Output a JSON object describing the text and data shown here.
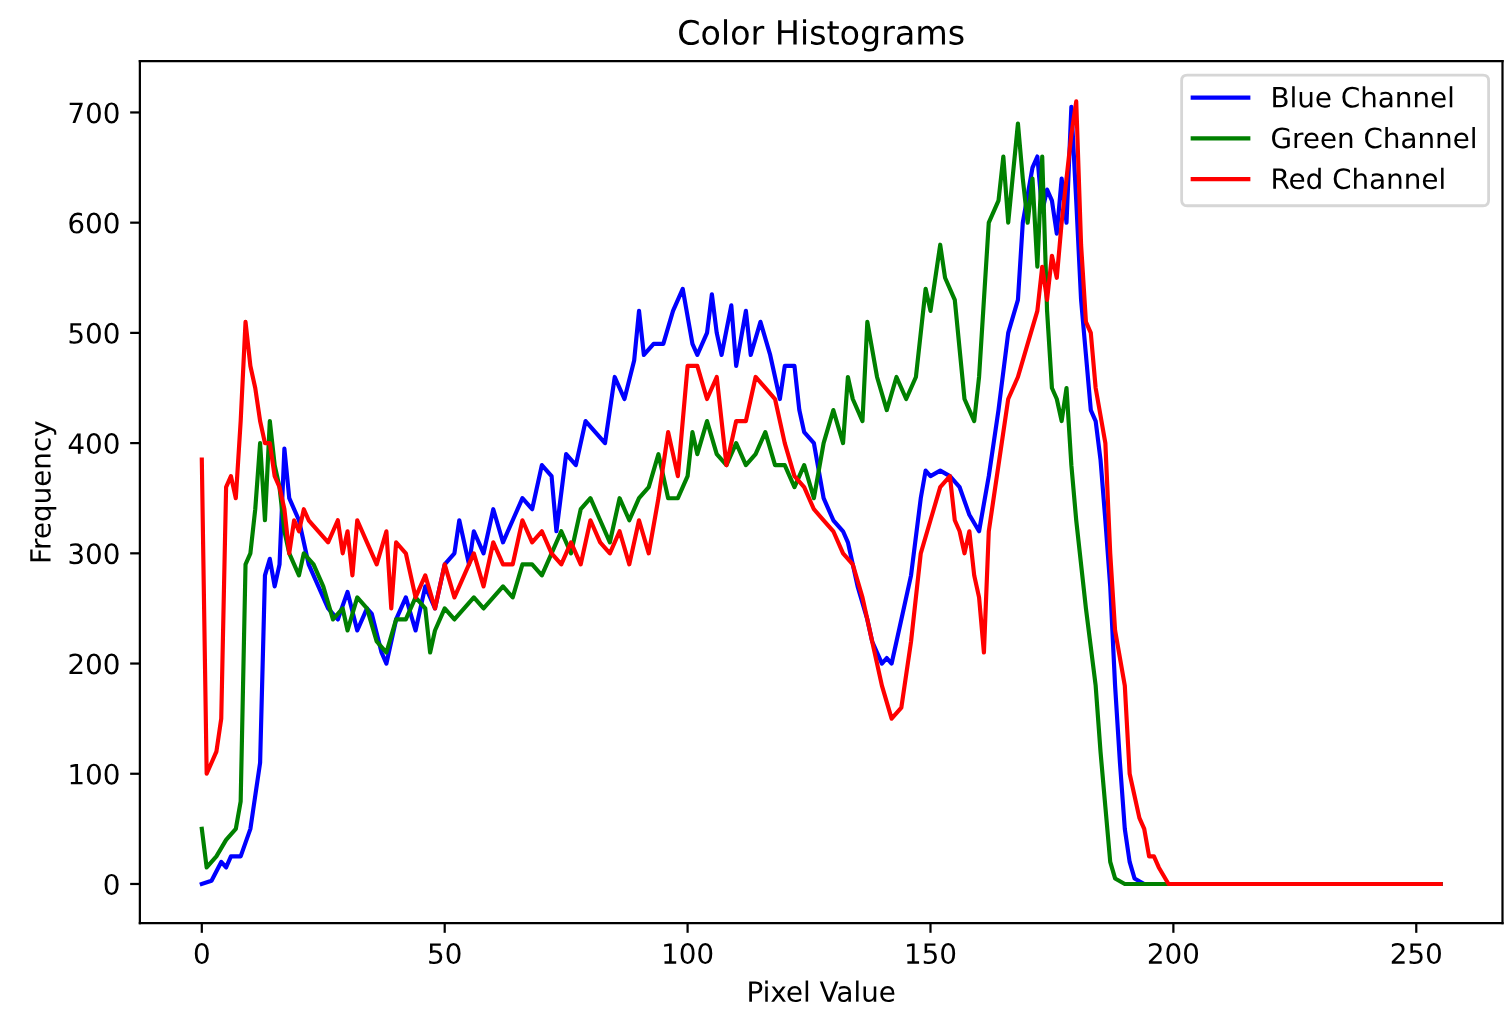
{
  "chart_data": {
    "type": "line",
    "title": "Color Histograms",
    "xlabel": "Pixel Value",
    "ylabel": "Frequency",
    "xlim": [
      -12.75,
      267.75
    ],
    "ylim": [
      -35.5,
      746.5
    ],
    "xticks": [
      0,
      50,
      100,
      150,
      200,
      250
    ],
    "yticks": [
      0,
      100,
      200,
      300,
      400,
      500,
      600,
      700
    ],
    "grid": false,
    "legend": "top right",
    "series": [
      {
        "name": "Blue Channel",
        "color": "#0000ff",
        "x": [
          0,
          2,
          4,
          5,
          6,
          8,
          10,
          11,
          12,
          13,
          14,
          15,
          16,
          17,
          18,
          20,
          22,
          24,
          26,
          28,
          30,
          32,
          34,
          35,
          37,
          38,
          40,
          42,
          44,
          46,
          48,
          50,
          52,
          53,
          55,
          56,
          58,
          60,
          62,
          64,
          66,
          68,
          70,
          72,
          73,
          75,
          77,
          79,
          81,
          83,
          85,
          87,
          89,
          90,
          91,
          93,
          95,
          97,
          99,
          101,
          102,
          104,
          105,
          106,
          107,
          109,
          110,
          112,
          113,
          115,
          117,
          119,
          120,
          122,
          123,
          124,
          126,
          128,
          130,
          132,
          133,
          135,
          137,
          138,
          139,
          140,
          141,
          142,
          144,
          146,
          148,
          149,
          150,
          152,
          154,
          156,
          158,
          160,
          162,
          164,
          166,
          168,
          169,
          171,
          172,
          173,
          174,
          175,
          176,
          177,
          178,
          179,
          180,
          181,
          182,
          183,
          184,
          185,
          186,
          187,
          188,
          189,
          190,
          191,
          192,
          194,
          200,
          255
        ],
        "values": [
          0,
          3,
          20,
          15,
          25,
          25,
          50,
          80,
          110,
          280,
          295,
          270,
          290,
          395,
          350,
          330,
          290,
          270,
          250,
          240,
          265,
          230,
          250,
          245,
          210,
          200,
          240,
          260,
          230,
          270,
          250,
          290,
          300,
          330,
          290,
          320,
          300,
          340,
          310,
          330,
          350,
          340,
          380,
          370,
          320,
          390,
          380,
          420,
          410,
          400,
          460,
          440,
          475,
          520,
          480,
          490,
          490,
          520,
          540,
          490,
          480,
          500,
          535,
          500,
          480,
          525,
          470,
          520,
          480,
          510,
          480,
          440,
          470,
          470,
          430,
          410,
          400,
          350,
          330,
          320,
          310,
          270,
          240,
          220,
          210,
          200,
          205,
          200,
          240,
          280,
          350,
          375,
          370,
          375,
          370,
          360,
          335,
          320,
          370,
          430,
          500,
          530,
          600,
          650,
          660,
          610,
          630,
          620,
          590,
          640,
          600,
          705,
          620,
          530,
          480,
          430,
          420,
          385,
          330,
          270,
          180,
          110,
          50,
          20,
          5,
          0,
          0,
          0
        ]
      },
      {
        "name": "Green Channel",
        "color": "#008000",
        "x": [
          0,
          1,
          3,
          5,
          7,
          8,
          9,
          10,
          11,
          12,
          13,
          14,
          15,
          16,
          17,
          18,
          19,
          20,
          21,
          23,
          25,
          27,
          29,
          30,
          32,
          34,
          36,
          38,
          40,
          42,
          44,
          46,
          47,
          48,
          50,
          52,
          54,
          56,
          58,
          60,
          62,
          64,
          66,
          68,
          70,
          72,
          74,
          76,
          78,
          80,
          82,
          84,
          86,
          88,
          90,
          92,
          94,
          96,
          98,
          100,
          101,
          102,
          104,
          106,
          108,
          110,
          112,
          114,
          116,
          118,
          120,
          122,
          124,
          126,
          128,
          130,
          132,
          133,
          134,
          136,
          137,
          139,
          141,
          143,
          145,
          147,
          149,
          150,
          152,
          153,
          155,
          157,
          159,
          160,
          162,
          164,
          165,
          166,
          168,
          169,
          170,
          171,
          172,
          173,
          174,
          175,
          176,
          177,
          178,
          179,
          180,
          182,
          184,
          185,
          186,
          187,
          188,
          190,
          255
        ],
        "values": [
          50,
          15,
          25,
          40,
          50,
          75,
          290,
          300,
          340,
          400,
          330,
          420,
          380,
          360,
          320,
          300,
          290,
          280,
          300,
          290,
          270,
          240,
          250,
          230,
          260,
          250,
          220,
          210,
          240,
          240,
          260,
          250,
          210,
          230,
          250,
          240,
          250,
          260,
          250,
          260,
          270,
          260,
          290,
          290,
          280,
          300,
          320,
          300,
          340,
          350,
          330,
          310,
          350,
          330,
          350,
          360,
          390,
          350,
          350,
          370,
          410,
          390,
          420,
          390,
          380,
          400,
          380,
          390,
          410,
          380,
          380,
          360,
          380,
          350,
          400,
          430,
          400,
          460,
          440,
          420,
          510,
          460,
          430,
          460,
          440,
          460,
          540,
          520,
          580,
          550,
          530,
          440,
          420,
          460,
          600,
          620,
          660,
          600,
          690,
          640,
          600,
          640,
          560,
          660,
          520,
          450,
          440,
          420,
          450,
          380,
          330,
          250,
          180,
          120,
          70,
          20,
          5,
          0,
          0
        ]
      },
      {
        "name": "Red Channel",
        "color": "#ff0000",
        "x": [
          0,
          1,
          2,
          3,
          4,
          5,
          6,
          7,
          8,
          9,
          10,
          11,
          12,
          13,
          14,
          15,
          16,
          17,
          18,
          19,
          20,
          21,
          22,
          24,
          26,
          28,
          29,
          30,
          31,
          32,
          34,
          35,
          36,
          38,
          39,
          40,
          42,
          44,
          46,
          48,
          50,
          52,
          54,
          56,
          58,
          60,
          62,
          64,
          66,
          68,
          70,
          72,
          74,
          76,
          78,
          80,
          82,
          84,
          86,
          88,
          90,
          92,
          94,
          96,
          98,
          100,
          102,
          104,
          106,
          108,
          110,
          112,
          114,
          116,
          118,
          120,
          122,
          124,
          126,
          128,
          130,
          132,
          134,
          136,
          138,
          140,
          142,
          144,
          146,
          148,
          150,
          152,
          154,
          155,
          156,
          157,
          158,
          159,
          160,
          161,
          162,
          164,
          166,
          168,
          170,
          172,
          173,
          174,
          175,
          176,
          177,
          179,
          180,
          181,
          182,
          183,
          184,
          186,
          187,
          188,
          190,
          191,
          192,
          193,
          194,
          195,
          196,
          197,
          199,
          255
        ],
        "values": [
          385,
          100,
          110,
          120,
          150,
          360,
          370,
          350,
          420,
          510,
          470,
          450,
          420,
          400,
          400,
          370,
          360,
          340,
          300,
          330,
          320,
          340,
          330,
          320,
          310,
          330,
          300,
          320,
          280,
          330,
          310,
          300,
          290,
          320,
          250,
          310,
          300,
          260,
          280,
          250,
          290,
          260,
          280,
          300,
          270,
          310,
          290,
          290,
          330,
          310,
          320,
          300,
          290,
          310,
          290,
          330,
          310,
          300,
          320,
          290,
          330,
          300,
          350,
          410,
          370,
          470,
          470,
          440,
          460,
          380,
          420,
          420,
          460,
          450,
          440,
          400,
          370,
          360,
          340,
          330,
          320,
          300,
          290,
          260,
          220,
          180,
          150,
          160,
          220,
          300,
          330,
          360,
          370,
          330,
          320,
          300,
          320,
          280,
          260,
          210,
          320,
          380,
          440,
          460,
          490,
          520,
          560,
          530,
          570,
          550,
          600,
          680,
          710,
          580,
          510,
          500,
          450,
          400,
          300,
          230,
          180,
          100,
          80,
          60,
          50,
          25,
          25,
          15,
          0,
          0
        ]
      }
    ]
  }
}
